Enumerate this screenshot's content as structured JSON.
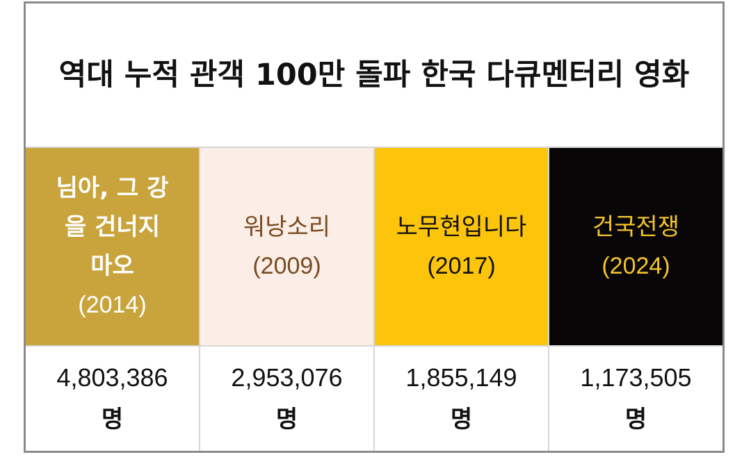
{
  "title": "역대 누적 관객 100만 돌파 한국 다큐멘터리 영화",
  "colors": {
    "film1_bg": "#c9a43c",
    "film1_text": "#ffffff",
    "film2_bg": "#fbeee6",
    "film2_text": "#7a4a22",
    "film3_bg": "#fcc50c",
    "film3_text": "#111111",
    "film4_bg": "#080606",
    "film4_text": "#f3c32c"
  },
  "films": [
    {
      "name": "님아, 그 강을 건너지 마오",
      "year": "(2014)",
      "audience": "4,803,386",
      "unit": "명"
    },
    {
      "name": "워낭소리",
      "year": "(2009)",
      "audience": "2,953,076",
      "unit": "명"
    },
    {
      "name": "노무현입니다",
      "year": "(2017)",
      "audience": "1,855,149",
      "unit": "명"
    },
    {
      "name": "건국전쟁",
      "year": "(2024)",
      "audience": "1,173,505",
      "unit": "명"
    }
  ]
}
